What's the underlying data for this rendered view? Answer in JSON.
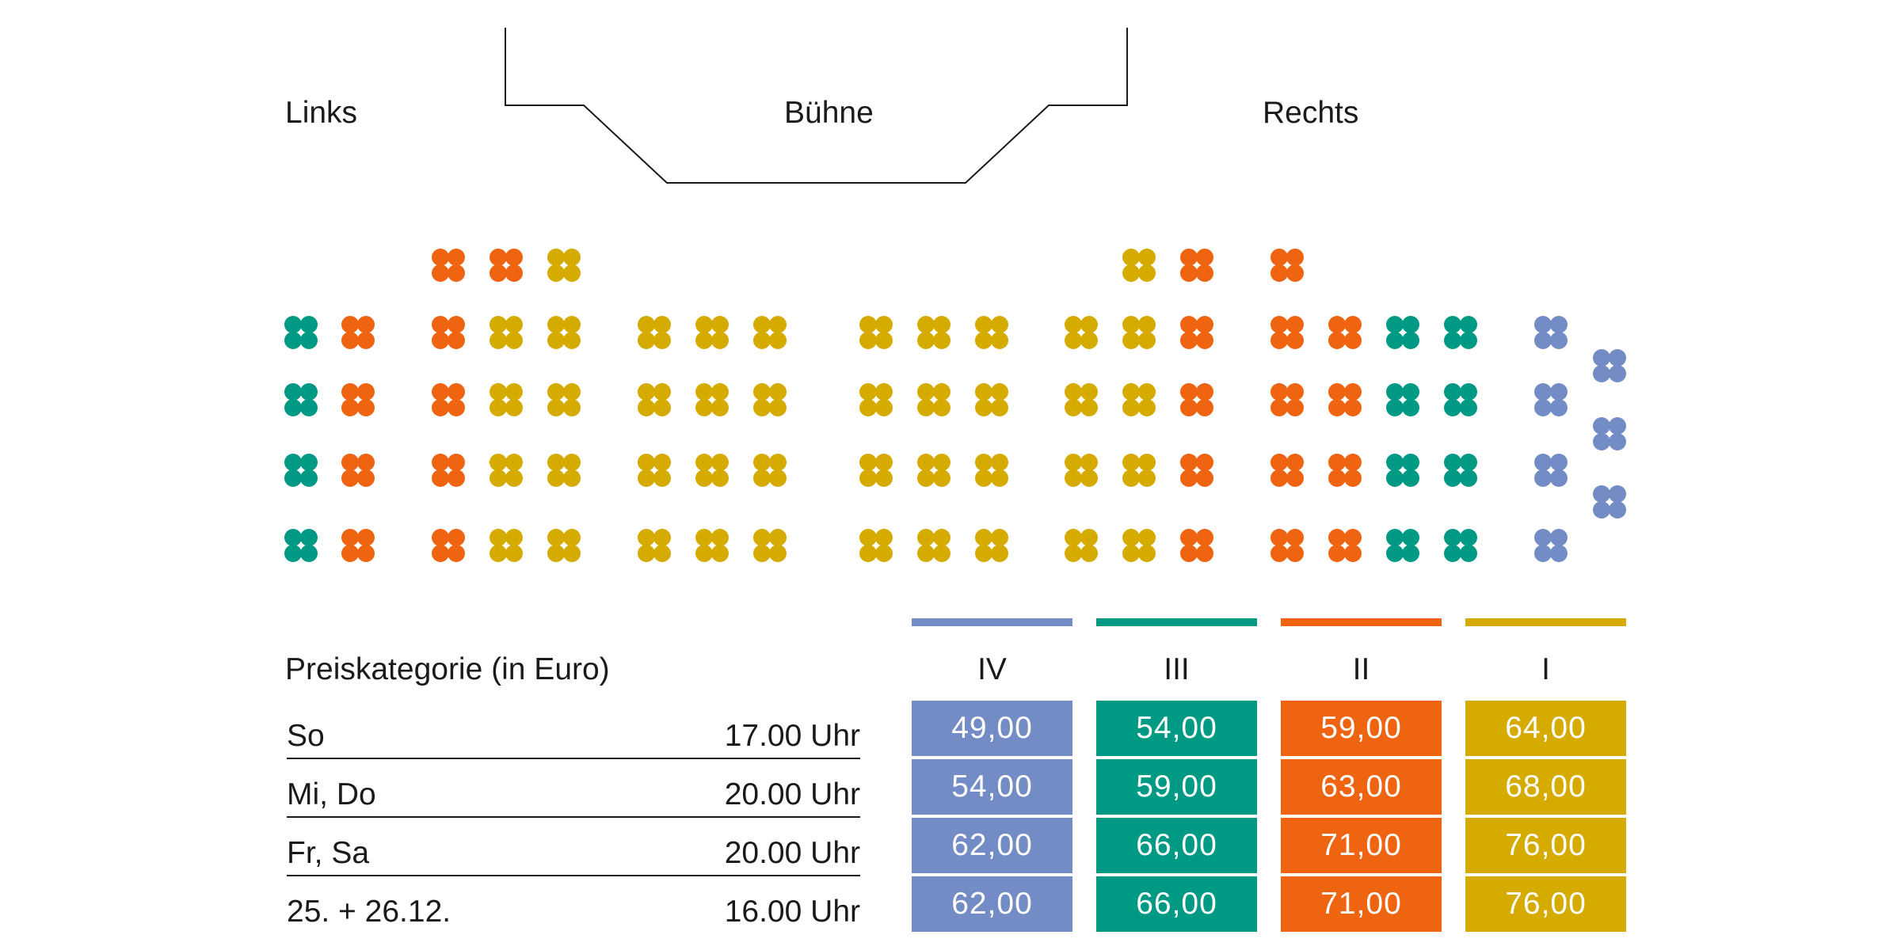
{
  "header": {
    "left_label": "Links",
    "stage_label": "Bühne",
    "right_label": "Rechts"
  },
  "colors": {
    "IV": "#738cc6",
    "III": "#009a84",
    "II": "#ee6410",
    "I": "#d6ab00",
    "text": "#1a1a1a"
  },
  "seating": {
    "groups": [
      [
        "III",
        "III",
        "III",
        "III"
      ],
      [
        "II",
        "II",
        "II",
        "II"
      ],
      [
        "II",
        "II",
        "II",
        "II",
        "II"
      ],
      [
        "II",
        "I",
        "I",
        "I",
        "I"
      ],
      [
        "I",
        "I",
        "I",
        "I",
        "I"
      ],
      [
        "I",
        "I",
        "I",
        "I"
      ],
      [
        "I",
        "I",
        "I",
        "I"
      ],
      [
        "I",
        "I",
        "I",
        "I"
      ],
      [
        "I",
        "I",
        "I",
        "I"
      ],
      [
        "I",
        "I",
        "I",
        "I"
      ],
      [
        "I",
        "I",
        "I",
        "I"
      ],
      [
        "I",
        "I",
        "I",
        "I"
      ],
      [
        "I",
        "I",
        "I",
        "I",
        "I"
      ],
      [
        "II",
        "II",
        "II",
        "II",
        "II"
      ],
      [
        "II",
        "II",
        "II",
        "II",
        "II"
      ],
      [
        "II",
        "II",
        "II",
        "II"
      ],
      [
        "III",
        "III",
        "III",
        "III"
      ],
      [
        "III",
        "III",
        "III",
        "III"
      ],
      [
        "IV",
        "IV",
        "IV",
        "IV"
      ],
      [
        "IV",
        "IV",
        "IV"
      ]
    ]
  },
  "table": {
    "title": "Preiskategorie (in Euro)",
    "categories": [
      "IV",
      "III",
      "II",
      "I"
    ],
    "rows": [
      {
        "days": "So",
        "time": "17.00 Uhr",
        "prices": [
          "49,00",
          "54,00",
          "59,00",
          "64,00"
        ]
      },
      {
        "days": "Mi, Do",
        "time": "20.00 Uhr",
        "prices": [
          "54,00",
          "59,00",
          "63,00",
          "68,00"
        ]
      },
      {
        "days": "Fr, Sa",
        "time": "20.00 Uhr",
        "prices": [
          "62,00",
          "66,00",
          "71,00",
          "76,00"
        ]
      },
      {
        "days": "25. + 26.12.",
        "time": "16.00 Uhr",
        "prices": [
          "62,00",
          "66,00",
          "71,00",
          "76,00"
        ]
      }
    ]
  }
}
